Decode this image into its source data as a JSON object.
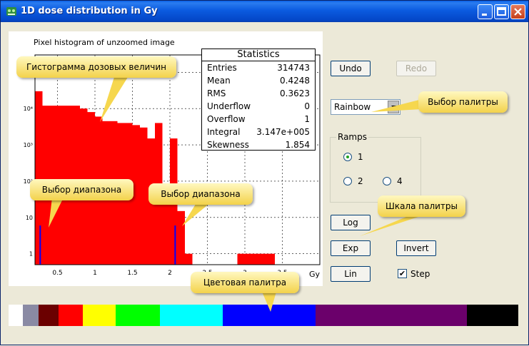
{
  "window": {
    "title": "1D dose distribution in Gy",
    "controls": [
      "minimize",
      "maximize",
      "close"
    ]
  },
  "plot": {
    "title": "Pixel histogram of unzoomed image",
    "x_unit_label": "Gy"
  },
  "chart_data": {
    "type": "bar",
    "title": "Pixel histogram of unzoomed image",
    "xlabel": "Gy",
    "ylabel": "",
    "log_y": true,
    "grid": true,
    "xlim": [
      0.2,
      4.0
    ],
    "ylim": [
      0.5,
      300000
    ],
    "x_ticks": [
      "0.5",
      "1",
      "1.5",
      "2",
      "2.5",
      "3",
      "3.5"
    ],
    "y_ticks": [
      "1",
      "10",
      "10²",
      "10³",
      "10⁴"
    ],
    "bin_width": 0.1,
    "bins": [
      {
        "x0": 0.2,
        "x1": 0.3,
        "y": 30000
      },
      {
        "x0": 0.3,
        "x1": 0.4,
        "y": 12000
      },
      {
        "x0": 0.4,
        "x1": 0.8,
        "y": 12000
      },
      {
        "x0": 0.8,
        "x1": 0.9,
        "y": 10000
      },
      {
        "x0": 0.9,
        "x1": 1.0,
        "y": 8000
      },
      {
        "x0": 1.0,
        "x1": 1.1,
        "y": 6000
      },
      {
        "x0": 1.1,
        "x1": 1.3,
        "y": 4500
      },
      {
        "x0": 1.3,
        "x1": 1.5,
        "y": 4000
      },
      {
        "x0": 1.5,
        "x1": 1.6,
        "y": 3500
      },
      {
        "x0": 1.6,
        "x1": 1.7,
        "y": 3000
      },
      {
        "x0": 1.7,
        "x1": 1.8,
        "y": 1500
      },
      {
        "x0": 1.8,
        "x1": 1.9,
        "y": 4000
      },
      {
        "x0": 1.9,
        "x1": 2.0,
        "y": 40
      },
      {
        "x0": 2.0,
        "x1": 2.1,
        "y": 1500
      },
      {
        "x0": 2.1,
        "x1": 2.2,
        "y": 15
      },
      {
        "x0": 2.2,
        "x1": 2.3,
        "y": 1
      },
      {
        "x0": 2.9,
        "x1": 3.4,
        "y": 1
      }
    ],
    "range_markers": [
      0.27,
      2.07
    ],
    "statistics": {
      "title": "Statistics",
      "rows": [
        {
          "key": "Entries",
          "value": "314743"
        },
        {
          "key": "Mean",
          "value": "0.4248"
        },
        {
          "key": "RMS",
          "value": "0.3623"
        },
        {
          "key": "Underflow",
          "value": "0"
        },
        {
          "key": "Overflow",
          "value": "1"
        },
        {
          "key": "Integral",
          "value": "3.147e+005"
        },
        {
          "key": "Skewness",
          "value": "1.854"
        }
      ]
    }
  },
  "buttons": {
    "undo": "Undo",
    "redo": "Redo",
    "log": "Log",
    "exp": "Exp",
    "invert": "Invert",
    "lin": "Lin"
  },
  "palette_select": {
    "value": "Rainbow"
  },
  "ramps": {
    "label": "Ramps",
    "options": [
      "1",
      "2",
      "4"
    ],
    "selected": "1"
  },
  "step": {
    "label": "Step",
    "checked": true
  },
  "palette_bar": {
    "colors": [
      {
        "color": "#ffffff",
        "weight": 20
      },
      {
        "color": "#8a8aa4",
        "weight": 22
      },
      {
        "color": "#6b0000",
        "weight": 28
      },
      {
        "color": "#ff0000",
        "weight": 34
      },
      {
        "color": "#ffff00",
        "weight": 46
      },
      {
        "color": "#00ff00",
        "weight": 62
      },
      {
        "color": "#00ffff",
        "weight": 88
      },
      {
        "color": "#0000ff",
        "weight": 130
      },
      {
        "color": "#6b006b",
        "weight": 212
      },
      {
        "color": "#000000",
        "weight": 72
      }
    ]
  },
  "callouts": {
    "histogram": "Гистограмма дозовых величин",
    "range_left": "Выбор диапазона",
    "range_right": "Выбор диапазона",
    "palette_choice": "Выбор палитры",
    "palette_scale": "Шкала палитры",
    "color_palette": "Цветовая палитра"
  }
}
